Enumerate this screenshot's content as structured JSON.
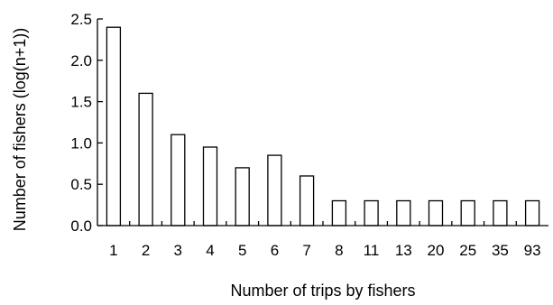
{
  "chart_data": {
    "type": "bar",
    "categories": [
      "1",
      "2",
      "3",
      "4",
      "5",
      "6",
      "7",
      "8",
      "11",
      "13",
      "20",
      "25",
      "35",
      "93"
    ],
    "values": [
      2.4,
      1.6,
      1.1,
      0.95,
      0.7,
      0.85,
      0.6,
      0.3,
      0.3,
      0.3,
      0.3,
      0.3,
      0.3,
      0.3
    ],
    "title": "",
    "xlabel": "Number of trips by fishers",
    "ylabel": "Number of fishers (log(n+1))",
    "ylim": [
      0,
      2.5
    ],
    "yticks": [
      "0.0",
      "0.5",
      "1.0",
      "1.5",
      "2.0",
      "2.5"
    ],
    "grid": false,
    "colors": {
      "bar_fill": "#ffffff",
      "bar_stroke": "#000000",
      "axis": "#000000"
    }
  }
}
